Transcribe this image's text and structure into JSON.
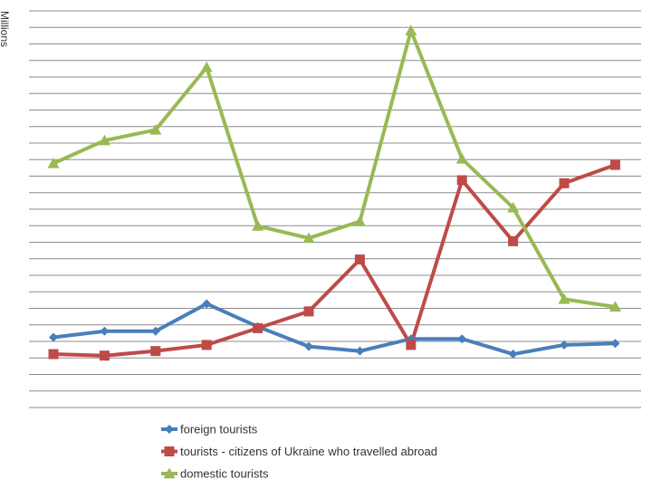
{
  "chart_data": {
    "type": "line",
    "title": "",
    "xlabel": "",
    "ylabel": "Millions",
    "grid": true,
    "legend_position": "bottom",
    "x": [
      1,
      2,
      3,
      4,
      5,
      6,
      7,
      8,
      9,
      10,
      11,
      12
    ],
    "ylim": [
      -4,
      22
    ],
    "series": [
      {
        "name": "foreign tourists",
        "color": "#4a7ebb",
        "marker": "diamond",
        "values": [
          0.6,
          1.0,
          1.0,
          2.8,
          1.3,
          0.0,
          -0.3,
          0.5,
          0.5,
          -0.5,
          0.1,
          0.2
        ]
      },
      {
        "name": "tourists - citizens of Ukraine who travelled abroad",
        "color": "#be4b48",
        "marker": "square",
        "values": [
          -0.5,
          -0.6,
          -0.3,
          0.1,
          1.2,
          2.3,
          5.7,
          0.1,
          10.9,
          6.9,
          10.7,
          11.9
        ]
      },
      {
        "name": "domestic tourists",
        "color": "#98b954",
        "marker": "triangle",
        "values": [
          12.0,
          13.5,
          14.2,
          18.3,
          7.9,
          7.1,
          8.2,
          20.7,
          12.3,
          9.1,
          3.1,
          2.6
        ]
      }
    ]
  }
}
